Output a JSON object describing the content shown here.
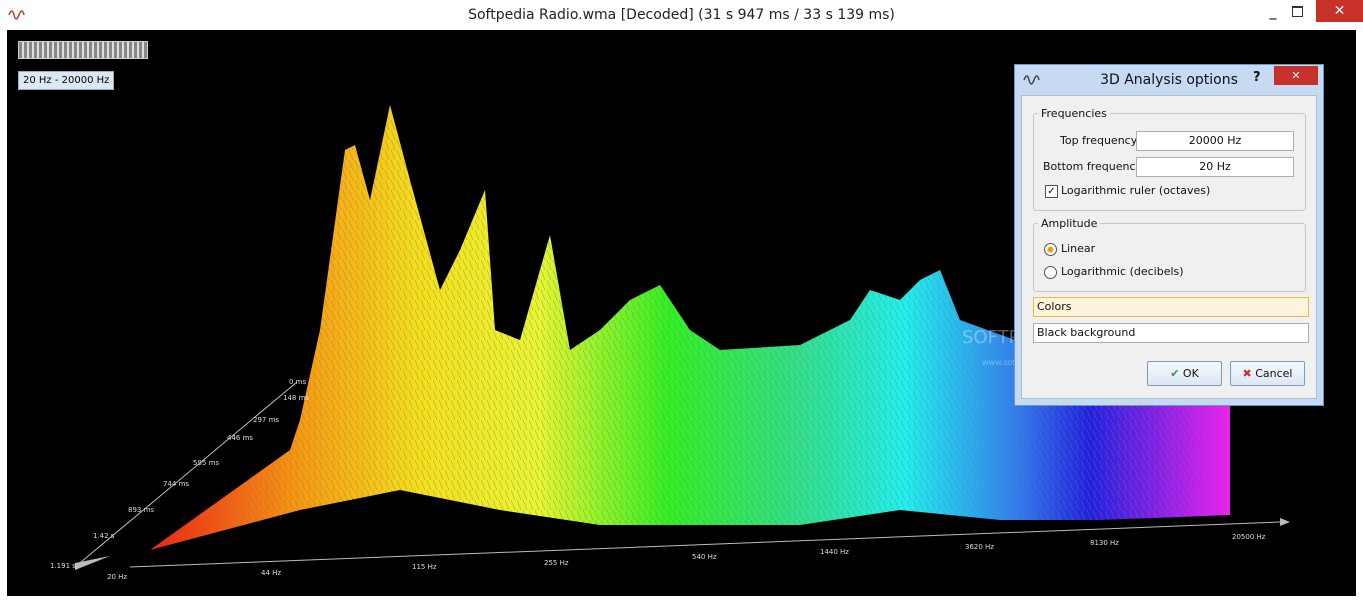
{
  "window": {
    "title": "Softpedia Radio.wma [Decoded] (31 s 947 ms / 33 s 139 ms)"
  },
  "view": {
    "range_badge": "20 Hz - 20000 Hz",
    "time_axis": [
      "0 ms",
      "148 ms",
      "297 ms",
      "446 ms",
      "595 ms",
      "744 ms",
      "893 ms",
      "1.42 s",
      "1.191 s"
    ],
    "frequency_axis": [
      "20 Hz",
      "44 Hz",
      "115 Hz",
      "255 Hz",
      "540 Hz",
      "1440 Hz",
      "3620 Hz",
      "8130 Hz",
      "20500 Hz"
    ],
    "watermark": "SOFTPEDIA",
    "watermark_url": "www.softpedia.com"
  },
  "dialog": {
    "title": "3D Analysis options",
    "help": "?",
    "frequencies": {
      "legend": "Frequencies",
      "top_label": "Top frequency",
      "top_value": "20000 Hz",
      "bottom_label": "Bottom frequency",
      "bottom_value": "20 Hz",
      "log_ruler": "Logarithmic ruler (octaves)"
    },
    "amplitude": {
      "legend": "Amplitude",
      "linear": "Linear",
      "log": "Logarithmic (decibels)"
    },
    "color_mode": "Colors",
    "background": "Black background",
    "ok": "OK",
    "cancel": "Cancel"
  }
}
